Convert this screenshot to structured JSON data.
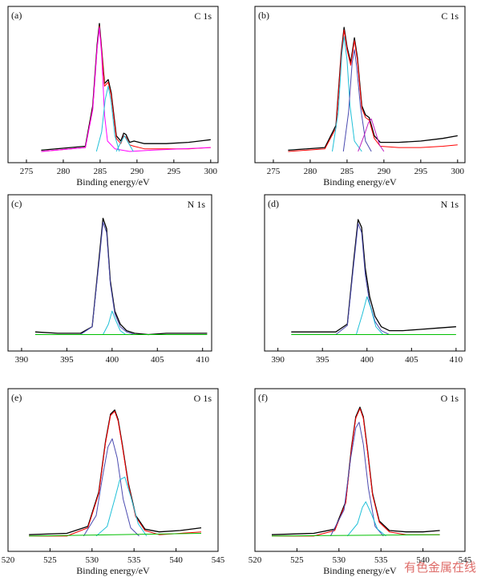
{
  "watermark": "有色金属在线",
  "chart_data": [
    {
      "type": "line",
      "panel_label": "(a)",
      "spectrum_label": "C 1s",
      "xlabel": "Binding energy/eV",
      "xlim": [
        272.5,
        301
      ],
      "xticks": [
        275,
        280,
        285,
        290,
        295,
        300
      ],
      "series": [
        {
          "color": "#000000",
          "x": [
            277,
            283,
            284.0,
            284.6,
            284.9,
            285.2,
            285.6,
            286.1,
            286.5,
            287.2,
            287.8,
            288.2,
            288.5,
            289.0,
            289.6,
            291,
            294,
            297,
            300
          ],
          "y": [
            0.01,
            0.04,
            0.35,
            0.82,
            0.98,
            0.78,
            0.52,
            0.55,
            0.45,
            0.12,
            0.08,
            0.14,
            0.13,
            0.07,
            0.08,
            0.06,
            0.06,
            0.07,
            0.09
          ]
        },
        {
          "color": "#ff0000",
          "x": [
            277,
            283,
            284.0,
            284.6,
            284.9,
            285.2,
            285.6,
            286.1,
            286.5,
            287.2,
            287.8,
            288.2,
            288.5,
            289.0,
            289.6,
            291,
            294,
            297,
            300
          ],
          "y": [
            0.0,
            0.03,
            0.33,
            0.8,
            0.96,
            0.77,
            0.5,
            0.53,
            0.43,
            0.1,
            0.06,
            0.12,
            0.11,
            0.05,
            0.04,
            0.02,
            0.02,
            0.02,
            0.03
          ]
        },
        {
          "color": "#ff00ff",
          "x": [
            277,
            283,
            284.0,
            284.6,
            284.9,
            285.2,
            285.6,
            286.0,
            287,
            289,
            292,
            296,
            300
          ],
          "y": [
            0.0,
            0.03,
            0.32,
            0.79,
            0.95,
            0.74,
            0.28,
            0.08,
            0.02,
            0.0,
            0.01,
            0.02,
            0.03
          ]
        },
        {
          "color": "#20c0d8",
          "x": [
            284.5,
            285.2,
            285.7,
            286.1,
            286.5,
            287.0,
            287.6
          ],
          "y": [
            0.0,
            0.15,
            0.4,
            0.5,
            0.38,
            0.12,
            0.0
          ]
        },
        {
          "color": "#20c0d8",
          "x": [
            287.2,
            287.8,
            288.3,
            288.8,
            289.5
          ],
          "y": [
            0.0,
            0.07,
            0.12,
            0.07,
            0.0
          ]
        }
      ]
    },
    {
      "type": "line",
      "panel_label": "(b)",
      "spectrum_label": "C 1s",
      "xlabel": "Binding energy/eV",
      "xlim": [
        272.5,
        301
      ],
      "xticks": [
        275,
        280,
        285,
        290,
        295,
        300
      ],
      "series": [
        {
          "color": "#000000",
          "x": [
            277,
            282,
            283.5,
            284.2,
            284.6,
            285.0,
            285.5,
            286.0,
            286.4,
            287.0,
            287.5,
            288.0,
            288.7,
            289.5,
            292,
            295,
            298,
            300
          ],
          "y": [
            0.01,
            0.03,
            0.2,
            0.75,
            0.95,
            0.8,
            0.68,
            0.87,
            0.72,
            0.35,
            0.28,
            0.26,
            0.12,
            0.07,
            0.07,
            0.08,
            0.1,
            0.12
          ]
        },
        {
          "color": "#ff0000",
          "x": [
            277,
            282,
            283.5,
            284.2,
            284.6,
            285.0,
            285.5,
            286.0,
            286.4,
            287.0,
            287.5,
            288.0,
            288.7,
            289.5,
            292,
            295,
            298,
            300
          ],
          "y": [
            0.0,
            0.02,
            0.18,
            0.73,
            0.93,
            0.78,
            0.66,
            0.85,
            0.7,
            0.33,
            0.26,
            0.24,
            0.1,
            0.04,
            0.03,
            0.03,
            0.04,
            0.05
          ]
        },
        {
          "color": "#20c0d8",
          "x": [
            283,
            283.8,
            284.3,
            284.6,
            285.0,
            285.4,
            286.0,
            287
          ],
          "y": [
            0.0,
            0.3,
            0.75,
            0.88,
            0.7,
            0.35,
            0.08,
            0.0
          ]
        },
        {
          "color": "#4b4bb0",
          "x": [
            284.5,
            285.2,
            285.7,
            286.0,
            286.3,
            286.8,
            287.5,
            288.3
          ],
          "y": [
            0.0,
            0.3,
            0.68,
            0.78,
            0.65,
            0.35,
            0.08,
            0.0
          ]
        },
        {
          "color": "#c020c0",
          "x": [
            286.5,
            287.3,
            287.9,
            288.3,
            288.8,
            289.4,
            290
          ],
          "y": [
            0.0,
            0.12,
            0.22,
            0.25,
            0.16,
            0.05,
            0.0
          ]
        }
      ]
    },
    {
      "type": "line",
      "panel_label": "(c)",
      "spectrum_label": "N 1s",
      "xlabel": "",
      "xlim": [
        388.5,
        411
      ],
      "xticks": [
        390,
        395,
        400,
        405,
        410
      ],
      "series": [
        {
          "color": "#000000",
          "x": [
            391.5,
            394,
            396.5,
            397.8,
            398.6,
            399.0,
            399.4,
            399.8,
            400.3,
            400.9,
            401.6,
            402.5,
            404,
            406,
            408,
            410.5
          ],
          "y": [
            0.06,
            0.05,
            0.05,
            0.1,
            0.65,
            0.93,
            0.85,
            0.45,
            0.22,
            0.12,
            0.07,
            0.05,
            0.04,
            0.05,
            0.05,
            0.05
          ]
        },
        {
          "color": "#4b4bb0",
          "x": [
            396.5,
            397.8,
            398.6,
            399.0,
            399.4,
            399.8,
            400.3,
            400.9,
            401.6,
            402.5
          ],
          "y": [
            0.04,
            0.1,
            0.62,
            0.9,
            0.82,
            0.43,
            0.2,
            0.1,
            0.06,
            0.04
          ]
        },
        {
          "color": "#20c0d8",
          "x": [
            399.0,
            399.6,
            400.0,
            400.4,
            400.9,
            401.5
          ],
          "y": [
            0.04,
            0.12,
            0.22,
            0.15,
            0.07,
            0.04
          ]
        },
        {
          "color": "#00c000",
          "x": [
            391.5,
            410.5
          ],
          "y": [
            0.04,
            0.04
          ]
        }
      ]
    },
    {
      "type": "line",
      "panel_label": "(d)",
      "spectrum_label": "N 1s",
      "xlabel": "",
      "xlim": [
        388.5,
        411
      ],
      "xticks": [
        390,
        395,
        400,
        405,
        410
      ],
      "series": [
        {
          "color": "#000000",
          "x": [
            391.5,
            394,
            396.5,
            397.8,
            398.5,
            399.0,
            399.4,
            399.8,
            400.3,
            400.9,
            401.6,
            402.5,
            404,
            406,
            408,
            410
          ],
          "y": [
            0.06,
            0.06,
            0.06,
            0.12,
            0.6,
            0.92,
            0.86,
            0.55,
            0.33,
            0.18,
            0.1,
            0.07,
            0.07,
            0.08,
            0.09,
            0.1
          ]
        },
        {
          "color": "#4b4bb0",
          "x": [
            396.5,
            397.8,
            398.5,
            399.0,
            399.4,
            399.8,
            400.3,
            400.9,
            401.6,
            402.5
          ],
          "y": [
            0.04,
            0.11,
            0.57,
            0.89,
            0.82,
            0.5,
            0.28,
            0.14,
            0.07,
            0.04
          ]
        },
        {
          "color": "#20c0d8",
          "x": [
            398.8,
            399.5,
            400.0,
            400.4,
            401.0,
            401.8
          ],
          "y": [
            0.04,
            0.2,
            0.33,
            0.25,
            0.1,
            0.04
          ]
        },
        {
          "color": "#00c000",
          "x": [
            391.5,
            410
          ],
          "y": [
            0.04,
            0.04
          ]
        }
      ]
    },
    {
      "type": "line",
      "panel_label": "(e)",
      "spectrum_label": "O 1s",
      "xlabel": "Binding energy/eV",
      "xlim": [
        520,
        545
      ],
      "xticks": [
        520,
        525,
        530,
        535,
        540,
        545
      ],
      "series": [
        {
          "color": "#000000",
          "x": [
            522.5,
            527,
            529.5,
            530.8,
            531.6,
            532.2,
            532.7,
            533.1,
            533.6,
            534.3,
            535.2,
            536.3,
            538,
            540.5,
            543
          ],
          "y": [
            0.04,
            0.05,
            0.1,
            0.35,
            0.72,
            0.92,
            0.95,
            0.88,
            0.7,
            0.42,
            0.18,
            0.08,
            0.06,
            0.07,
            0.09
          ]
        },
        {
          "color": "#ff0000",
          "x": [
            522.5,
            527,
            529.5,
            530.8,
            531.6,
            532.2,
            532.7,
            533.1,
            533.6,
            534.3,
            535.2,
            536.3,
            538,
            540.5,
            543
          ],
          "y": [
            0.03,
            0.03,
            0.09,
            0.34,
            0.71,
            0.91,
            0.94,
            0.87,
            0.69,
            0.41,
            0.17,
            0.07,
            0.04,
            0.05,
            0.06
          ]
        },
        {
          "color": "#4b4bb0",
          "x": [
            529,
            530.5,
            531.3,
            531.9,
            532.4,
            533.0,
            533.7,
            534.6,
            535.6
          ],
          "y": [
            0.03,
            0.18,
            0.48,
            0.68,
            0.74,
            0.6,
            0.3,
            0.09,
            0.03
          ]
        },
        {
          "color": "#20c0d8",
          "x": [
            530.5,
            531.8,
            532.7,
            533.3,
            533.9,
            534.6,
            535.5,
            536.5
          ],
          "y": [
            0.03,
            0.1,
            0.3,
            0.44,
            0.46,
            0.32,
            0.12,
            0.03
          ]
        },
        {
          "color": "#00c000",
          "x": [
            522.5,
            543
          ],
          "y": [
            0.03,
            0.05
          ]
        }
      ]
    },
    {
      "type": "line",
      "panel_label": "(f)",
      "spectrum_label": "O 1s",
      "xlabel": "Binding energy/eV",
      "xlim": [
        520,
        545
      ],
      "xticks": [
        520,
        525,
        530,
        535,
        540,
        545
      ],
      "series": [
        {
          "color": "#000000",
          "x": [
            522,
            527,
            529.5,
            530.8,
            531.5,
            532.0,
            532.5,
            532.9,
            533.4,
            534.0,
            534.8,
            536,
            538,
            540,
            542
          ],
          "y": [
            0.04,
            0.05,
            0.08,
            0.28,
            0.68,
            0.9,
            0.97,
            0.9,
            0.66,
            0.34,
            0.14,
            0.07,
            0.06,
            0.06,
            0.07
          ]
        },
        {
          "color": "#ff0000",
          "x": [
            522,
            527,
            529.5,
            530.8,
            531.5,
            532.0,
            532.5,
            532.9,
            533.4,
            534.0,
            534.8,
            536,
            538,
            540,
            542
          ],
          "y": [
            0.03,
            0.03,
            0.07,
            0.27,
            0.67,
            0.89,
            0.96,
            0.89,
            0.65,
            0.33,
            0.13,
            0.06,
            0.04,
            0.04,
            0.04
          ]
        },
        {
          "color": "#4b4bb0",
          "x": [
            529,
            530.6,
            531.4,
            532.0,
            532.4,
            532.9,
            533.5,
            534.3,
            535.3
          ],
          "y": [
            0.03,
            0.22,
            0.6,
            0.82,
            0.86,
            0.7,
            0.38,
            0.1,
            0.03
          ]
        },
        {
          "color": "#20c0d8",
          "x": [
            531,
            532.2,
            532.8,
            533.2,
            533.8,
            534.6,
            535.6
          ],
          "y": [
            0.03,
            0.12,
            0.24,
            0.28,
            0.2,
            0.08,
            0.03
          ]
        },
        {
          "color": "#00c000",
          "x": [
            522,
            542
          ],
          "y": [
            0.03,
            0.04
          ]
        }
      ]
    }
  ]
}
